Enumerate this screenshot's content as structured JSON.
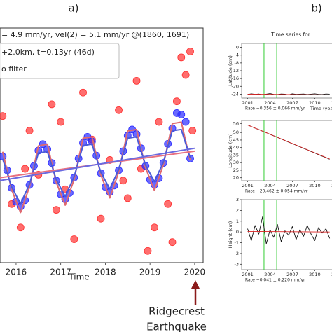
{
  "panel_labels": [
    "a)",
    "b)"
  ],
  "note": [
    "Ridgecrest",
    "Earthquake"
  ],
  "chart_data": [
    {
      "type": "scatter",
      "title": "= 4.9 mm/yr, vel(2) = 5.1 mm/yr @(1860, 1691)",
      "annotations": [
        "+2.0km, t=0.13yr (46d)",
        "o filter"
      ],
      "xlabel": "Time",
      "xlim": [
        2015.64,
        2020.19
      ],
      "xticks": [
        2016,
        2017,
        2018,
        2019,
        2020
      ],
      "ylim": [
        -40,
        40
      ],
      "yticks": [],
      "series": [
        {
          "type": "scatter",
          "color": "#ff3030",
          "x": [
            2015.7,
            2015.9,
            2016.1,
            2016.3,
            2016.5,
            2016.8,
            2016.9,
            2017.1,
            2017.3,
            2017.5,
            2017.7,
            2017.9,
            2018.1,
            2018.3,
            2018.5,
            2018.7,
            2018.8,
            2018.95,
            2019.1,
            2019.2,
            2019.4,
            2019.5,
            2019.6,
            2019.7,
            2019.8,
            2019.9,
            2019.95,
            2017.0,
            2016.2,
            2018.4
          ],
          "values": [
            10,
            -20,
            -28,
            5,
            -10,
            14,
            -22,
            -15,
            -32,
            18,
            2,
            -25,
            -5,
            12,
            -18,
            22,
            -8,
            -36,
            -28,
            8,
            -20,
            -33,
            15,
            30,
            24,
            32,
            5,
            8,
            -8,
            -12
          ]
        },
        {
          "type": "scatter",
          "color": "#2a2aff",
          "x": [
            2015.7,
            2015.8,
            2015.9,
            2016.0,
            2016.1,
            2016.2,
            2016.3,
            2016.4,
            2016.5,
            2016.6,
            2016.7,
            2016.8,
            2016.9,
            2017.0,
            2017.1,
            2017.2,
            2017.3,
            2017.4,
            2017.5,
            2017.6,
            2017.7,
            2017.8,
            2017.9,
            2018.0,
            2018.1,
            2018.2,
            2018.3,
            2018.4,
            2018.5,
            2018.6,
            2018.7,
            2018.8,
            2018.9,
            2019.0,
            2019.1,
            2019.2,
            2019.3,
            2019.4,
            2019.5,
            2019.6,
            2019.7,
            2019.8,
            2019.9
          ],
          "values": [
            -3.8,
            -8.5,
            -14.5,
            -19.2,
            -20.9,
            -18.7,
            -13.5,
            -7.0,
            -1.8,
            0.4,
            -1.3,
            -6.0,
            -12.0,
            -16.7,
            -18.4,
            -16.2,
            -11.0,
            -4.5,
            0.8,
            2.9,
            1.3,
            -3.5,
            -9.5,
            -14.2,
            -15.9,
            -13.7,
            -8.5,
            -2.0,
            3.3,
            5.4,
            3.8,
            -1.0,
            -7.0,
            -11.7,
            -13.4,
            -11.2,
            -6.0,
            0.5,
            5.8,
            11.0,
            10.5,
            8.0,
            -4.5
          ]
        },
        {
          "type": "line",
          "color": "#e06a70",
          "x": [
            2015.7,
            2015.9,
            2016.1,
            2016.3,
            2016.5,
            2016.7,
            2016.9,
            2017.1,
            2017.3,
            2017.5,
            2017.7,
            2017.9,
            2018.1,
            2018.3,
            2018.5,
            2018.7,
            2018.9,
            2019.1,
            2019.3,
            2019.5,
            2019.7,
            2019.9
          ],
          "values": [
            -2.2,
            -15.1,
            -22.9,
            -14.1,
            -0.2,
            0.4,
            -12.6,
            -20.4,
            -11.6,
            2.4,
            2.9,
            -10.1,
            -17.9,
            -9.1,
            4.9,
            5.4,
            -7.6,
            -15.4,
            -6.6,
            7.4,
            7.9,
            -5.1
          ]
        },
        {
          "type": "line",
          "color": "#4a5ad8",
          "x": [
            2015.7,
            2015.9,
            2016.1,
            2016.3,
            2016.5,
            2016.7,
            2016.9,
            2017.1,
            2017.3,
            2017.5,
            2017.7,
            2017.9,
            2018.1,
            2018.3,
            2018.5,
            2018.7,
            2018.9,
            2019.1,
            2019.3,
            2019.5,
            2019.7,
            2019.9
          ],
          "values": [
            -4.6,
            -14.2,
            -19.9,
            -13.2,
            -2.6,
            -2.1,
            -11.7,
            -17.4,
            -10.7,
            -0.1,
            0.4,
            -9.2,
            -14.9,
            -8.2,
            2.4,
            2.9,
            -6.7,
            -12.4,
            -5.7,
            5.0,
            5.4,
            -4.2
          ]
        },
        {
          "type": "line",
          "color": "#e87080",
          "x": [
            2015.64,
            2020.0
          ],
          "values": [
            -11,
            -2
          ]
        },
        {
          "type": "line",
          "color": "#6a6ae0",
          "x": [
            2015.64,
            2020.0
          ],
          "values": [
            -12,
            -1
          ]
        }
      ]
    },
    {
      "type": "line",
      "title": "Time series for",
      "ylabel": "Latitude (cm)",
      "caption": "Rate −0.356 ± 0.066 mm/yr",
      "xlabel": "Time (years)",
      "xlim": [
        2000.2,
        2014
      ],
      "xticks": [
        2001,
        2004,
        2007,
        2010,
        2013
      ],
      "ylim": [
        -26,
        2
      ],
      "yticks": [
        0,
        -4,
        -8,
        -12,
        -16,
        -20,
        -24
      ],
      "events": [
        2003.2,
        2004.9
      ],
      "event_color": "#33cc33",
      "series": [
        {
          "type": "line",
          "color": "#111111",
          "x": [
            2001,
            2001.5,
            2002,
            2002.5,
            2003,
            2003.5,
            2004,
            2004.5,
            2005,
            2005.5,
            2006,
            2006.5,
            2007,
            2007.5,
            2008,
            2008.5,
            2009,
            2009.5,
            2010,
            2010.5,
            2011,
            2011.5,
            2012
          ],
          "values": [
            -24.2,
            -23.8,
            -24.1,
            -23.9,
            -24.3,
            -24.0,
            -23.7,
            -24.1,
            -24.2,
            -23.9,
            -24.0,
            -24.3,
            -23.8,
            -24.1,
            -24.0,
            -23.9,
            -24.2,
            -24.0,
            -23.8,
            -24.1,
            -24.2,
            -23.9,
            -24.0
          ]
        },
        {
          "type": "line",
          "color": "#dd2222",
          "x": [
            2001,
            2012
          ],
          "values": [
            -24,
            -24.4
          ]
        }
      ]
    },
    {
      "type": "line",
      "ylabel": "Longitude (cm)",
      "caption": "Rate −20.462 ± 0.054 mm/yr",
      "xlim": [
        2000.2,
        2014
      ],
      "xticks": [
        2001,
        2004,
        2007,
        2010,
        2013
      ],
      "ylim": [
        18,
        58
      ],
      "yticks": [
        56,
        50,
        45,
        40,
        35,
        30,
        25,
        20
      ],
      "events": [
        2003.2,
        2004.9
      ],
      "event_color": "#33cc33",
      "series": [
        {
          "type": "line",
          "color": "#111111",
          "x": [
            2001,
            2001.5,
            2002,
            2002.5,
            2003,
            2003.5,
            2004,
            2004.5,
            2005,
            2005.5,
            2006,
            2006.5,
            2007,
            2007.5,
            2008,
            2008.5,
            2009,
            2009.5,
            2010,
            2010.5,
            2011,
            2011.5,
            2012
          ],
          "values": [
            55.0,
            54.0,
            52.9,
            52.0,
            50.9,
            49.9,
            48.8,
            47.8,
            46.8,
            45.7,
            44.7,
            43.6,
            42.6,
            41.6,
            40.5,
            39.5,
            38.5,
            37.4,
            36.4,
            35.3,
            34.3,
            33.3,
            32.3
          ]
        },
        {
          "type": "line",
          "color": "#dd2222",
          "x": [
            2001,
            2012
          ],
          "values": [
            55.0,
            32.4
          ]
        }
      ]
    },
    {
      "type": "line",
      "ylabel": "Height (cm)",
      "caption": "Rate −0.041 ± 0.220 mm/yr",
      "xlim": [
        2000.2,
        2014
      ],
      "xticks": [
        2001,
        2004,
        2007,
        2010,
        2013
      ],
      "ylim": [
        -3.5,
        3
      ],
      "yticks": [
        3,
        2,
        1,
        0,
        -1,
        -2,
        -3
      ],
      "events": [
        2003.2,
        2004.9
      ],
      "event_color": "#33cc33",
      "series": [
        {
          "type": "line",
          "color": "#111111",
          "x": [
            2001,
            2001.5,
            2002,
            2002.5,
            2003,
            2003.5,
            2004,
            2004.5,
            2005,
            2005.5,
            2006,
            2006.5,
            2007,
            2007.5,
            2008,
            2008.5,
            2009,
            2009.5,
            2010,
            2010.5,
            2011,
            2011.5,
            2012
          ],
          "values": [
            0.3,
            -0.8,
            0.6,
            -0.2,
            1.4,
            -1.1,
            0.2,
            -0.5,
            0.7,
            -0.9,
            0.1,
            -0.3,
            0.5,
            -0.7,
            0.2,
            -0.4,
            0.6,
            -0.2,
            -0.8,
            0.4,
            -0.1,
            0.3,
            -0.6
          ]
        },
        {
          "type": "line",
          "color": "#dd2222",
          "x": [
            2001,
            2012
          ],
          "values": [
            0.05,
            0.0
          ]
        }
      ]
    }
  ]
}
